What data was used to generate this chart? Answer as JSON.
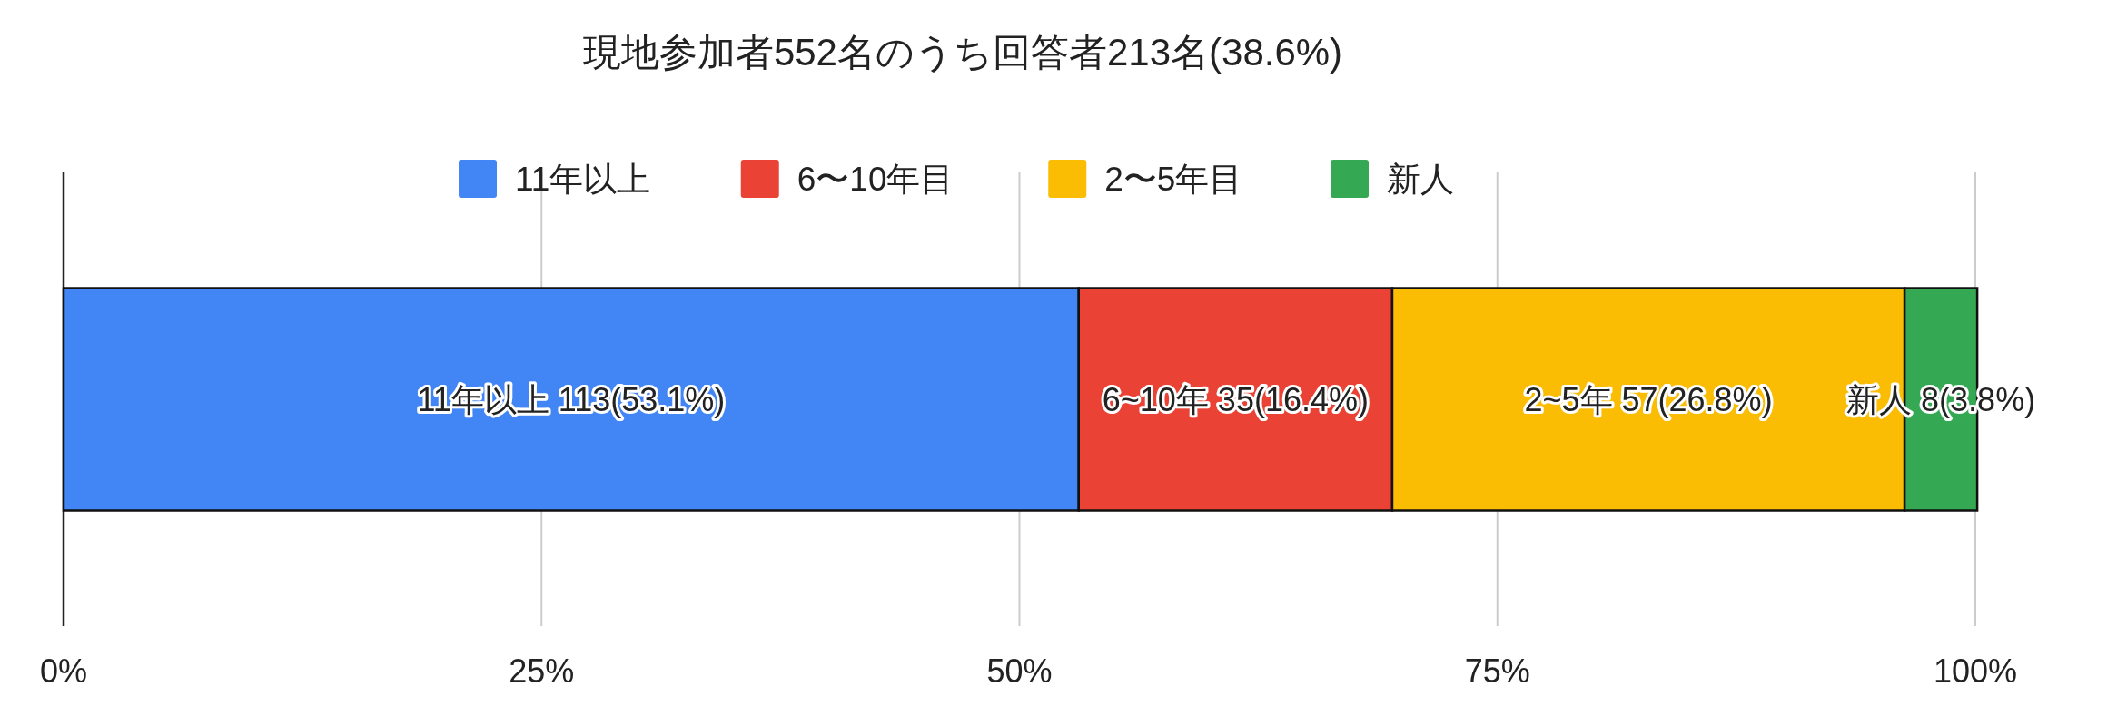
{
  "chart_data": {
    "type": "bar",
    "orientation": "horizontal",
    "stacked": true,
    "title": "現地参加者552名のうち回答者213名(38.6%)",
    "categories": [
      null
    ],
    "series": [
      {
        "name": "11年以上",
        "color": "#4285f4",
        "values": [
          53.1
        ],
        "value_labels": [
          "11年以上 113(53.1%)"
        ]
      },
      {
        "name": "6〜10年目",
        "color": "#ea4335",
        "values": [
          16.4
        ],
        "value_labels": [
          "6~10年 35(16.4%)"
        ]
      },
      {
        "name": "2〜5年目",
        "color": "#fbbc04",
        "values": [
          26.8
        ],
        "value_labels": [
          "2~5年 57(26.8%)"
        ]
      },
      {
        "name": "新人",
        "color": "#34a853",
        "values": [
          3.8
        ],
        "value_labels": [
          "新人 8(3.8%)"
        ]
      }
    ],
    "xlim": [
      0,
      100
    ],
    "xticks": [
      {
        "value": 0,
        "label": "0%"
      },
      {
        "value": 25,
        "label": "25%"
      },
      {
        "value": 50,
        "label": "50%"
      },
      {
        "value": 75,
        "label": "75%"
      },
      {
        "value": 100,
        "label": "100%"
      }
    ],
    "grid": "x",
    "legend": "top"
  }
}
